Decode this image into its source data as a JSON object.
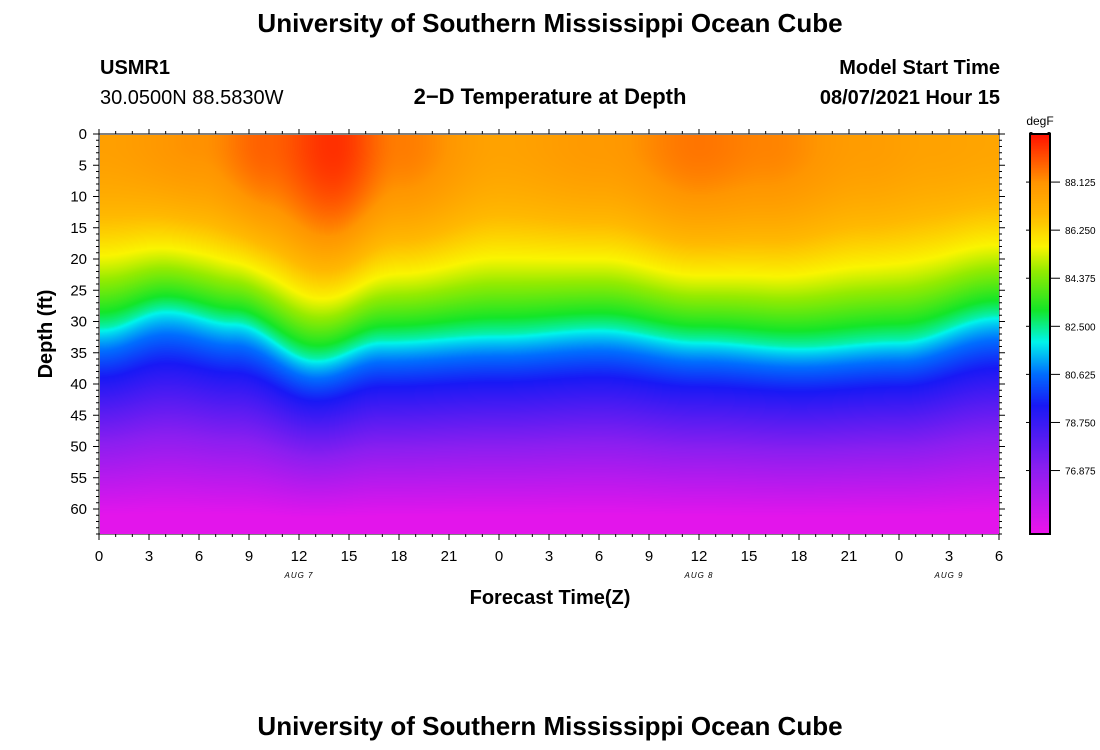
{
  "header": {
    "title": "University of Southern Mississippi Ocean Cube",
    "station_id": "USMR1",
    "station_coords": "30.0500N  88.5830W",
    "chart_title": "2−D Temperature at Depth",
    "model_start_label": "Model Start Time",
    "model_start_value": "08/07/2021 Hour 15"
  },
  "footer": {
    "title": "University of Southern Mississippi Ocean Cube"
  },
  "chart_data": {
    "type": "heatmap",
    "title": "2−D Temperature at Depth",
    "xlabel": "Forecast Time(Z)",
    "ylabel": "Depth (ft)",
    "x_range_hours": [
      0,
      54
    ],
    "x_tick_hours": [
      0,
      3,
      6,
      9,
      12,
      15,
      18,
      21,
      24,
      27,
      30,
      33,
      36,
      39,
      42,
      45,
      48,
      51,
      54
    ],
    "x_tick_labels": [
      "0",
      "3",
      "6",
      "9",
      "12",
      "15",
      "18",
      "21",
      "0",
      "3",
      "6",
      "9",
      "12",
      "15",
      "18",
      "21",
      "0",
      "3",
      "6"
    ],
    "date_labels": [
      {
        "hour": 12,
        "label": "AUG 7"
      },
      {
        "hour": 36,
        "label": "AUG 8"
      },
      {
        "hour": 51,
        "label": "AUG 9"
      }
    ],
    "y_range_ft": [
      0,
      64
    ],
    "y_tick_values": [
      0,
      5,
      10,
      15,
      20,
      25,
      30,
      35,
      40,
      45,
      50,
      55,
      60
    ],
    "y_tick_labels": [
      "0",
      "5",
      "10",
      "15",
      "20",
      "25",
      "30",
      "35",
      "40",
      "45",
      "50",
      "55",
      "60"
    ],
    "colorbar": {
      "unit": "degF",
      "min": 74.4,
      "max": 90.0,
      "tick_values": [
        76.875,
        78.75,
        80.625,
        82.5,
        84.375,
        86.25,
        88.125
      ],
      "tick_labels": [
        "76.875",
        "78.750",
        "80.625",
        "82.500",
        "84.375",
        "86.250",
        "88.125"
      ]
    },
    "surface_temperature_by_hour": [
      {
        "hour": 0,
        "value": 87.8
      },
      {
        "hour": 6,
        "value": 88.2
      },
      {
        "hour": 10,
        "value": 88.9
      },
      {
        "hour": 14,
        "value": 89.6
      },
      {
        "hour": 18,
        "value": 88.5
      },
      {
        "hour": 24,
        "value": 87.7
      },
      {
        "hour": 30,
        "value": 88.0
      },
      {
        "hour": 36,
        "value": 88.6
      },
      {
        "hour": 40,
        "value": 88.4
      },
      {
        "hour": 46,
        "value": 87.9
      },
      {
        "hour": 50,
        "value": 87.7
      },
      {
        "hour": 54,
        "value": 87.6
      }
    ],
    "thermocline_center_ft_by_hour": [
      {
        "hour": 0,
        "value": 31
      },
      {
        "hour": 4,
        "value": 28
      },
      {
        "hour": 8,
        "value": 30
      },
      {
        "hour": 13,
        "value": 36
      },
      {
        "hour": 17,
        "value": 33
      },
      {
        "hour": 24,
        "value": 32
      },
      {
        "hour": 30,
        "value": 31
      },
      {
        "hour": 36,
        "value": 33
      },
      {
        "hour": 42,
        "value": 34
      },
      {
        "hour": 48,
        "value": 33
      },
      {
        "hour": 54,
        "value": 29
      }
    ],
    "bottom_temperature": 74.6
  }
}
